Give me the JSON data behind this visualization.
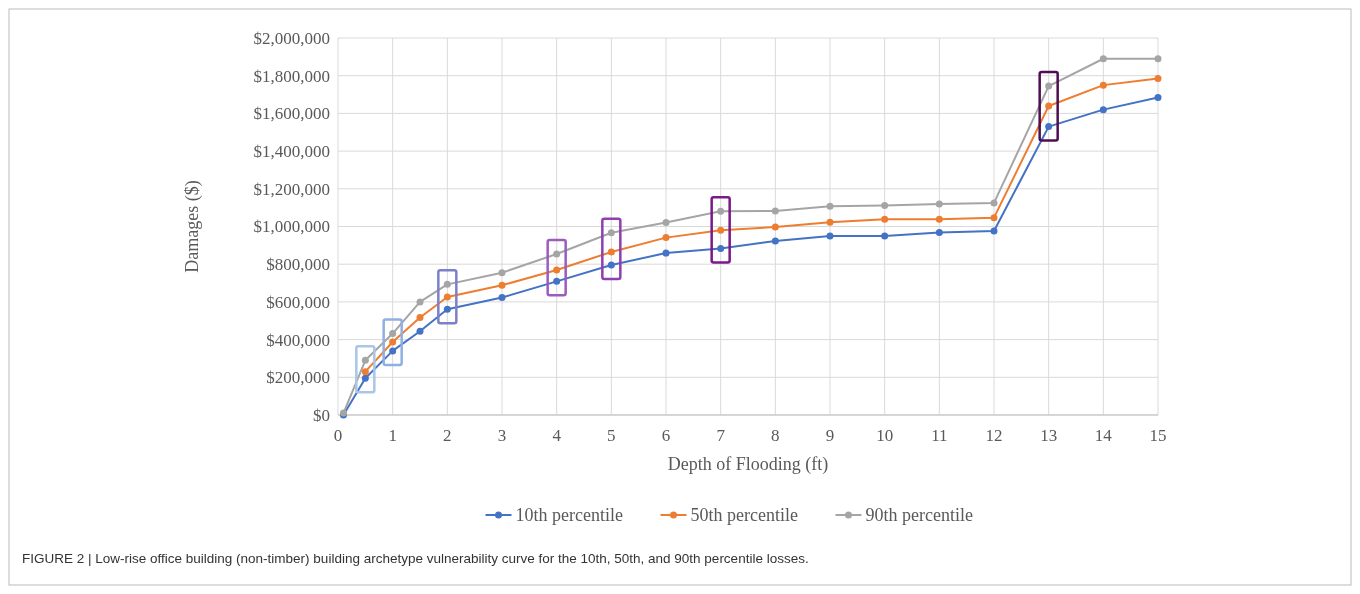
{
  "chart_data": {
    "type": "line",
    "xlabel": "Depth of Flooding (ft)",
    "ylabel": "Damages ($)",
    "x": [
      0.1,
      0.5,
      1,
      1.5,
      2,
      3,
      4,
      5,
      6,
      7,
      8,
      9,
      10,
      11,
      12,
      13,
      14,
      15
    ],
    "series": [
      {
        "name": "10th percentile",
        "color": "#4472c4",
        "values": [
          0,
          195000,
          340000,
          444000,
          561000,
          623000,
          709000,
          796000,
          859000,
          883000,
          923000,
          950000,
          950000,
          968000,
          976000,
          1530000,
          1620000,
          1684000
        ]
      },
      {
        "name": "50th percentile",
        "color": "#ed7d31",
        "values": [
          null,
          230000,
          387000,
          517000,
          626000,
          688000,
          769000,
          865000,
          941000,
          980000,
          997000,
          1022000,
          1038000,
          1038000,
          1047000,
          1639000,
          1750000,
          1785000
        ]
      },
      {
        "name": "90th percentile",
        "color": "#a5a5a5",
        "values": [
          10000,
          290000,
          432000,
          600000,
          693000,
          755000,
          854000,
          967000,
          1021000,
          1081000,
          1082000,
          1107000,
          1112000,
          1119000,
          1125000,
          1745000,
          1890000,
          1890000
        ]
      }
    ],
    "xlim": [
      0,
      15
    ],
    "xticks": [
      0,
      1,
      2,
      3,
      4,
      5,
      6,
      7,
      8,
      9,
      10,
      11,
      12,
      13,
      14,
      15
    ],
    "ylim": [
      0,
      2000000
    ],
    "yticks": [
      {
        "value": 0,
        "label": "$0"
      },
      {
        "value": 200000,
        "label": "$200,000"
      },
      {
        "value": 400000,
        "label": "$400,000"
      },
      {
        "value": 600000,
        "label": "$600,000"
      },
      {
        "value": 800000,
        "label": "$800,000"
      },
      {
        "value": 1000000,
        "label": "$1,000,000"
      },
      {
        "value": 1200000,
        "label": "$1,200,000"
      },
      {
        "value": 1400000,
        "label": "$1,400,000"
      },
      {
        "value": 1600000,
        "label": "$1,600,000"
      },
      {
        "value": 1800000,
        "label": "$1,800,000"
      },
      {
        "value": 2000000,
        "label": "$2,000,000"
      }
    ],
    "grid": true,
    "legend": "bottom",
    "marker": "circle",
    "line_style": "solid",
    "annotations": [
      "FIGURE 2 | Low-rise office building (non-timber) building archetype vulnerability curve for the 10th, 50th, and 90th percentile losses."
    ]
  }
}
